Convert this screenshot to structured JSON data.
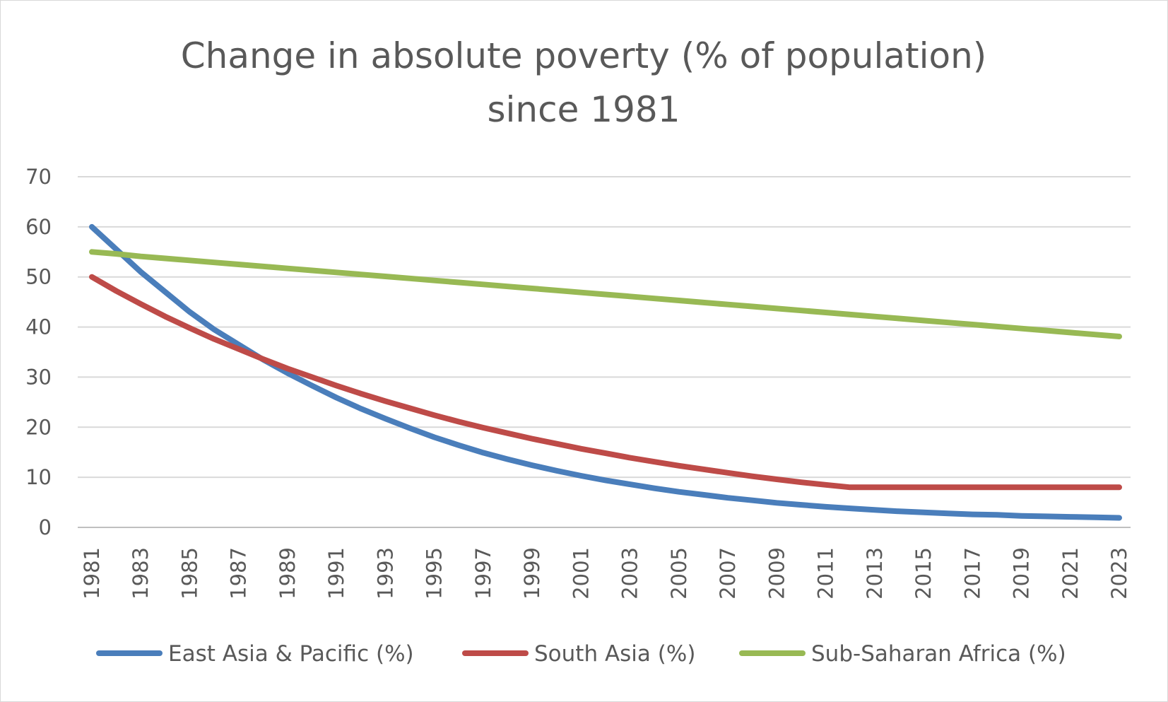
{
  "chart_data": {
    "type": "line",
    "title": [
      "Change in absolute poverty (% of population)",
      "since 1981"
    ],
    "xlabel": "",
    "ylabel": "",
    "ylim": [
      0,
      70
    ],
    "yticks": [
      "0",
      "10",
      "20",
      "30",
      "40",
      "50",
      "60",
      "70"
    ],
    "x": [
      "1981",
      "1982",
      "1983",
      "1984",
      "1985",
      "1986",
      "1987",
      "1988",
      "1989",
      "1990",
      "1991",
      "1992",
      "1993",
      "1994",
      "1995",
      "1996",
      "1997",
      "1998",
      "1999",
      "2000",
      "2001",
      "2002",
      "2003",
      "2004",
      "2005",
      "2006",
      "2007",
      "2008",
      "2009",
      "2010",
      "2011",
      "2012",
      "2013",
      "2014",
      "2015",
      "2016",
      "2017",
      "2018",
      "2019",
      "2020",
      "2021",
      "2022",
      "2023"
    ],
    "xticks": [
      "1981",
      "1983",
      "1985",
      "1987",
      "1989",
      "1991",
      "1993",
      "1995",
      "1997",
      "1999",
      "2001",
      "2003",
      "2005",
      "2007",
      "2009",
      "2011",
      "2013",
      "2015",
      "2017",
      "2019",
      "2021",
      "2023"
    ],
    "grid": true,
    "legend_position": "bottom",
    "series": [
      {
        "name": "East Asia & Pacific (%)",
        "color": "#4a7ebb",
        "values": [
          60,
          55.5,
          51,
          47,
          43,
          39.5,
          36.5,
          33.5,
          30.8,
          28.3,
          25.9,
          23.7,
          21.7,
          19.8,
          18,
          16.4,
          14.9,
          13.6,
          12.4,
          11.3,
          10.3,
          9.4,
          8.6,
          7.8,
          7.1,
          6.5,
          5.9,
          5.4,
          4.9,
          4.5,
          4.1,
          3.8,
          3.5,
          3.2,
          3,
          2.8,
          2.6,
          2.5,
          2.3,
          2.2,
          2.1,
          2,
          1.9
        ]
      },
      {
        "name": "South Asia (%)",
        "color": "#be4b48",
        "values": [
          50,
          47.2,
          44.6,
          42.1,
          39.8,
          37.6,
          35.6,
          33.6,
          31.7,
          30,
          28.3,
          26.7,
          25.2,
          23.8,
          22.4,
          21.1,
          19.9,
          18.8,
          17.7,
          16.7,
          15.7,
          14.8,
          13.9,
          13.1,
          12.3,
          11.6,
          10.9,
          10.2,
          9.6,
          9,
          8.5,
          8,
          8,
          8,
          8,
          8,
          8,
          8,
          8,
          8,
          8,
          8,
          8
        ]
      },
      {
        "name": "Sub-Saharan Africa (%)",
        "color": "#98b954",
        "values": [
          55,
          54.6,
          54.1,
          53.7,
          53.3,
          52.9,
          52.5,
          52.1,
          51.7,
          51.3,
          50.9,
          50.5,
          50.1,
          49.7,
          49.3,
          48.9,
          48.5,
          48.1,
          47.7,
          47.3,
          46.9,
          46.5,
          46.1,
          45.7,
          45.3,
          44.9,
          44.5,
          44.1,
          43.7,
          43.3,
          42.9,
          42.5,
          42.1,
          41.7,
          41.3,
          40.9,
          40.5,
          40.1,
          39.7,
          39.3,
          38.9,
          38.5,
          38.1
        ]
      }
    ]
  }
}
